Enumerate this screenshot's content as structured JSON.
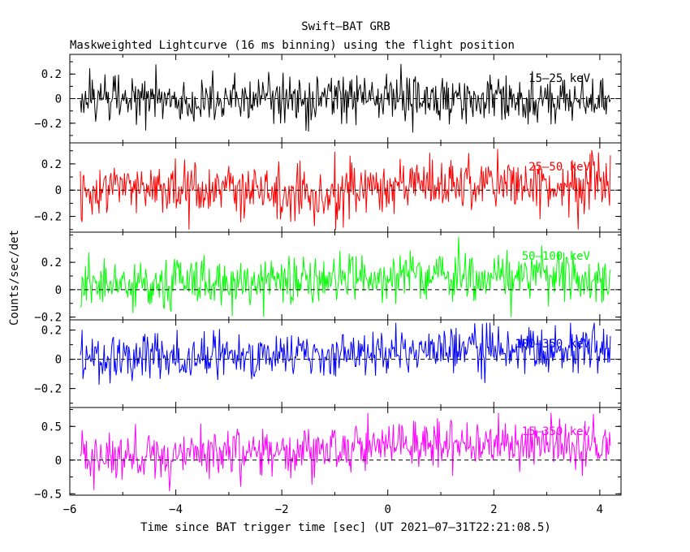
{
  "chart_data": {
    "type": "line",
    "title": "Swift–BAT GRB",
    "subtitle": "Maskweighted Lightcurve (16 ms binning) using the flight position",
    "xlabel": "Time since BAT trigger time [sec] (UT 2021–07–31T22:21:08.5)",
    "ylabel": "Counts/sec/det",
    "xlim": [
      -6.0,
      4.4
    ],
    "x_ticks": [
      -6,
      -4,
      -2,
      0,
      2,
      4
    ],
    "x_tick_labels": [
      "−6",
      "−4",
      "−2",
      "0",
      "2",
      "4"
    ],
    "x_data_range": [
      -5.8,
      4.2
    ],
    "bin_width_s": 0.016,
    "grid": false,
    "legend": "none",
    "panels": [
      {
        "name": "15–25 keV",
        "color": "#000000",
        "ylim": [
          -0.36,
          0.36
        ],
        "y_ticks": [
          -0.2,
          0,
          0.2
        ],
        "y_tick_labels": [
          "−0.2",
          "0",
          "0.2"
        ],
        "noise_sigma": 0.1,
        "peak_to_peak": [
          -0.3,
          0.3
        ],
        "trend": [
          [
            -5.8,
            0.0
          ],
          [
            4.2,
            0.0
          ]
        ]
      },
      {
        "name": "25–50 keV",
        "color": "#ff0000",
        "ylim": [
          -0.32,
          0.36
        ],
        "y_ticks": [
          -0.2,
          0,
          0.2
        ],
        "y_tick_labels": [
          "−0.2",
          "0",
          "0.2"
        ],
        "noise_sigma": 0.1,
        "peak_to_peak": [
          -0.3,
          0.35
        ],
        "trend": [
          [
            -5.8,
            0.0
          ],
          [
            -1.0,
            0.0
          ],
          [
            1.0,
            0.02
          ],
          [
            2.0,
            0.05
          ],
          [
            4.2,
            0.03
          ]
        ]
      },
      {
        "name": "50–100 keV",
        "color": "#00ff00",
        "ylim": [
          -0.22,
          0.42
        ],
        "y_ticks": [
          -0.2,
          0,
          0.2
        ],
        "y_tick_labels": [
          "−0.2",
          "0",
          "0.2"
        ],
        "noise_sigma": 0.09,
        "peak_to_peak": [
          -0.2,
          0.4
        ],
        "trend": [
          [
            -5.8,
            0.02
          ],
          [
            -2.0,
            0.07
          ],
          [
            -1.0,
            0.1
          ],
          [
            1.0,
            0.12
          ],
          [
            2.0,
            0.1
          ],
          [
            4.2,
            0.1
          ]
        ]
      },
      {
        "name": "100–350 keV",
        "color": "#0000ff",
        "ylim": [
          -0.33,
          0.27
        ],
        "y_ticks": [
          -0.2,
          0,
          0.2
        ],
        "y_tick_labels": [
          "−0.2",
          "0",
          "0.2"
        ],
        "noise_sigma": 0.08,
        "peak_to_peak": [
          -0.3,
          0.25
        ],
        "trend": [
          [
            -5.8,
            0.0
          ],
          [
            -2.0,
            0.02
          ],
          [
            0.0,
            0.05
          ],
          [
            2.0,
            0.07
          ],
          [
            4.2,
            0.05
          ]
        ]
      },
      {
        "name": "15–350 keV",
        "color": "#ff00ff",
        "ylim": [
          -0.52,
          0.78
        ],
        "y_ticks": [
          -0.5,
          0,
          0.5
        ],
        "y_tick_labels": [
          "−0.5",
          "0",
          "0.5"
        ],
        "noise_sigma": 0.17,
        "peak_to_peak": [
          -0.5,
          0.7
        ],
        "trend": [
          [
            -5.8,
            0.0
          ],
          [
            -2.0,
            0.1
          ],
          [
            0.0,
            0.2
          ],
          [
            2.0,
            0.25
          ],
          [
            4.2,
            0.2
          ]
        ]
      }
    ]
  }
}
